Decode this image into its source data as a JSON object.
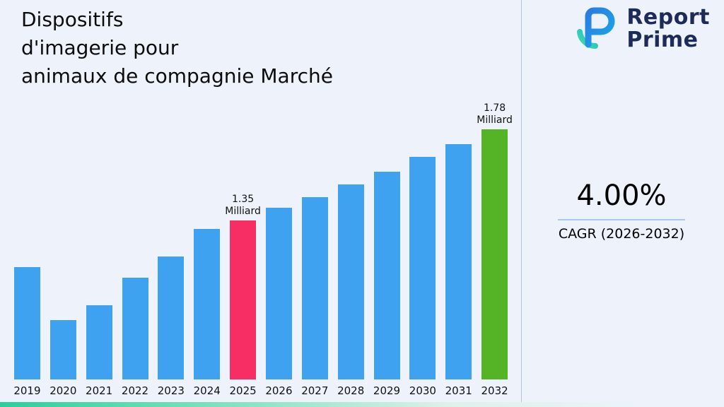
{
  "title": {
    "line1": "Dispositifs",
    "line2": "d'imagerie pour",
    "line3": "animaux de compagnie Marché"
  },
  "brand": {
    "name_line1": "Report",
    "name_line2": "Prime",
    "icon": "report-prime-logo",
    "text_color": "#1c2b5a"
  },
  "stat": {
    "value": "4.00%",
    "label": "CAGR (2026-2032)",
    "underline_color": "#a9c7f2"
  },
  "chart_data": {
    "type": "bar",
    "title": "Dispositifs d'imagerie pour animaux de compagnie Marché",
    "unit": "Milliard",
    "categories": [
      "2019",
      "2020",
      "2021",
      "2022",
      "2023",
      "2024",
      "2025",
      "2026",
      "2027",
      "2028",
      "2029",
      "2030",
      "2031",
      "2032"
    ],
    "values": [
      1.13,
      0.88,
      0.95,
      1.08,
      1.18,
      1.31,
      1.35,
      1.41,
      1.46,
      1.52,
      1.58,
      1.65,
      1.71,
      1.78
    ],
    "xlabel": "",
    "ylabel": "",
    "ylim": [
      0.6,
      1.9
    ],
    "grid": false,
    "legend": false,
    "bar_color_default": "#3FA2F0",
    "highlights": {
      "2025": "#F72E63",
      "2032": "#54B425"
    },
    "annotations": [
      {
        "category": "2025",
        "line1": "1.35",
        "line2": "Milliard"
      },
      {
        "category": "2032",
        "line1": "1.78",
        "line2": "Milliard"
      }
    ]
  },
  "colors": {
    "background": "#edf2fb",
    "divider": "#b7c3da",
    "footer_gradient_start": "#2bcf9c",
    "footer_gradient_end": "#edf2fb"
  }
}
